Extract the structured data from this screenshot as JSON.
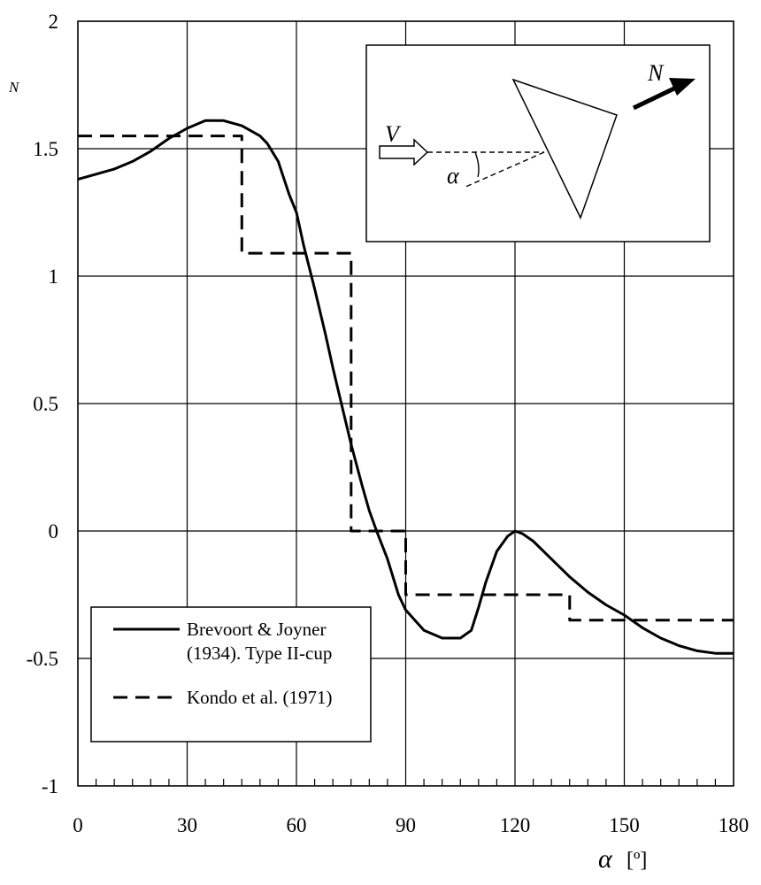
{
  "chart_data": {
    "type": "line",
    "xlabel": "α",
    "xunit": "[º]",
    "ylabel": "N",
    "xlim": [
      0,
      180
    ],
    "ylim": [
      -1,
      2
    ],
    "xticks": [
      0,
      30,
      60,
      90,
      120,
      150,
      180
    ],
    "yticks": [
      -1,
      -0.5,
      0,
      0.5,
      1,
      1.5,
      2
    ],
    "ytick_labels": [
      "-1",
      "-0.5",
      "0",
      "0.5",
      "1",
      "1.5",
      "2"
    ],
    "grid": true,
    "legend_placement": "bottom-left",
    "series": [
      {
        "name": "Brevoort & Joyner (1934). Type II-cup",
        "style": "solid",
        "x": [
          0,
          5,
          10,
          15,
          20,
          25,
          30,
          35,
          40,
          45,
          50,
          52,
          55,
          58,
          60,
          62,
          65,
          68,
          70,
          72,
          75,
          78,
          80,
          82,
          85,
          88,
          90,
          95,
          100,
          105,
          108,
          110,
          112,
          115,
          118,
          120,
          122,
          125,
          130,
          135,
          140,
          145,
          150,
          155,
          160,
          165,
          170,
          175,
          180
        ],
        "y": [
          1.38,
          1.4,
          1.42,
          1.45,
          1.49,
          1.54,
          1.58,
          1.61,
          1.61,
          1.59,
          1.55,
          1.52,
          1.45,
          1.32,
          1.25,
          1.12,
          0.95,
          0.77,
          0.64,
          0.52,
          0.34,
          0.18,
          0.08,
          0.0,
          -0.11,
          -0.25,
          -0.31,
          -0.39,
          -0.42,
          -0.42,
          -0.39,
          -0.3,
          -0.2,
          -0.08,
          -0.02,
          0.0,
          -0.01,
          -0.04,
          -0.11,
          -0.18,
          -0.24,
          -0.29,
          -0.33,
          -0.38,
          -0.42,
          -0.45,
          -0.47,
          -0.48,
          -0.48
        ]
      },
      {
        "name": "Kondo et al. (1971)",
        "style": "dashed",
        "x": [
          0,
          45,
          45,
          75,
          75,
          90,
          90,
          135,
          135,
          180
        ],
        "y": [
          1.55,
          1.55,
          1.09,
          1.09,
          0.0,
          0.0,
          -0.25,
          -0.25,
          -0.35,
          -0.35
        ]
      }
    ]
  },
  "inset": {
    "velocity_label": "V",
    "angle_label": "α",
    "force_label": "N"
  }
}
